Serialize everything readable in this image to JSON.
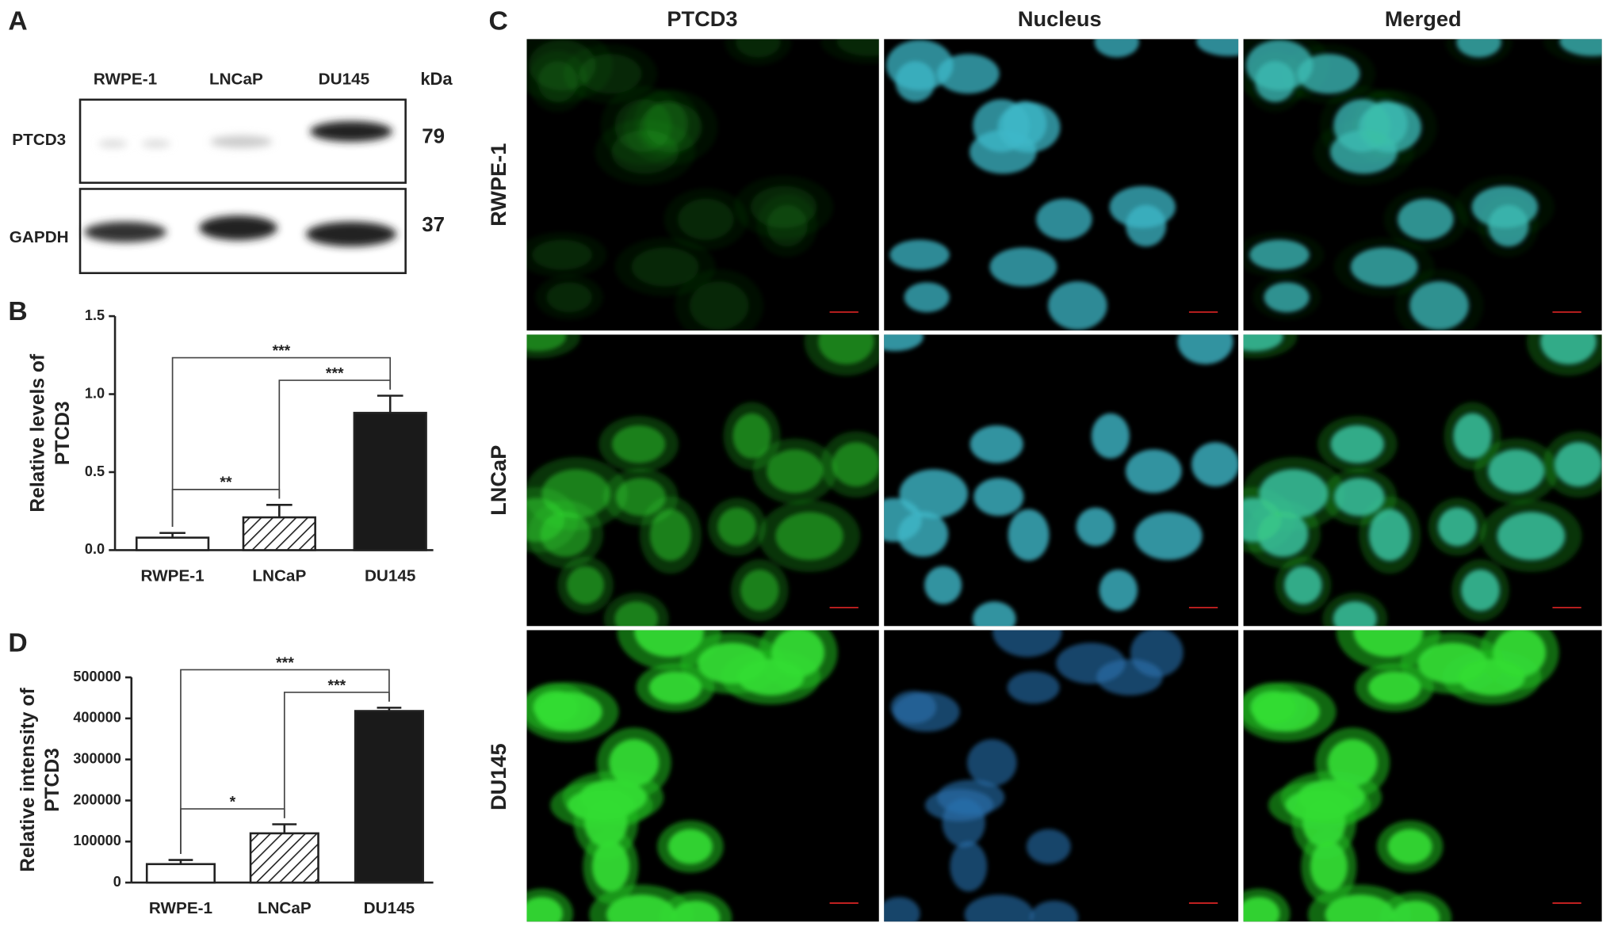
{
  "panels": {
    "a": "A",
    "b": "B",
    "c": "C",
    "d": "D"
  },
  "blot": {
    "lanes": [
      "RWPE-1",
      "LNCaP",
      "DU145"
    ],
    "unit": "kDa",
    "rows": [
      {
        "name": "PTCD3",
        "kda": "79"
      },
      {
        "name": "GAPDH",
        "kda": "37"
      }
    ]
  },
  "microscopy": {
    "columns": [
      "PTCD3",
      "Nucleus",
      "Merged"
    ],
    "rows": [
      "RWPE-1",
      "LNCaP",
      "DU145"
    ]
  },
  "chart_data": [
    {
      "type": "bar",
      "ylabel": [
        "Relative levels of",
        "PTCD3"
      ],
      "categories": [
        "RWPE-1",
        "LNCaP",
        "DU145"
      ],
      "values": [
        0.08,
        0.21,
        0.88
      ],
      "errors": [
        0.03,
        0.08,
        0.11
      ],
      "fills": [
        "open",
        "hatched",
        "solid"
      ],
      "ylim": [
        0,
        1.5
      ],
      "yticks": [
        {
          "value": 0,
          "label": "0.0"
        },
        0.5,
        {
          "value": 1,
          "label": "1.0"
        },
        1.5
      ],
      "annotations": [
        {
          "label": "***",
          "pair": [
            "RWPE-1",
            "DU145"
          ]
        },
        {
          "label": "***",
          "pair": [
            "LNCaP",
            "DU145"
          ]
        },
        {
          "label": "**",
          "pair": [
            "RWPE-1",
            "LNCaP"
          ]
        }
      ]
    },
    {
      "type": "bar",
      "ylabel": [
        "Relative intensity of",
        "PTCD3"
      ],
      "categories": [
        "RWPE-1",
        "LNCaP",
        "DU145"
      ],
      "values": [
        45000,
        120000,
        418000
      ],
      "errors": [
        10000,
        22000,
        8000
      ],
      "fills": [
        "open",
        "hatched",
        "solid"
      ],
      "ylim": [
        0,
        500000
      ],
      "yticks": [
        0,
        100000,
        200000,
        300000,
        400000,
        500000
      ],
      "annotations": [
        {
          "label": "***",
          "pair": [
            "RWPE-1",
            "DU145"
          ]
        },
        {
          "label": "***",
          "pair": [
            "LNCaP",
            "DU145"
          ]
        },
        {
          "label": "*",
          "pair": [
            "RWPE-1",
            "LNCaP"
          ]
        }
      ]
    }
  ]
}
